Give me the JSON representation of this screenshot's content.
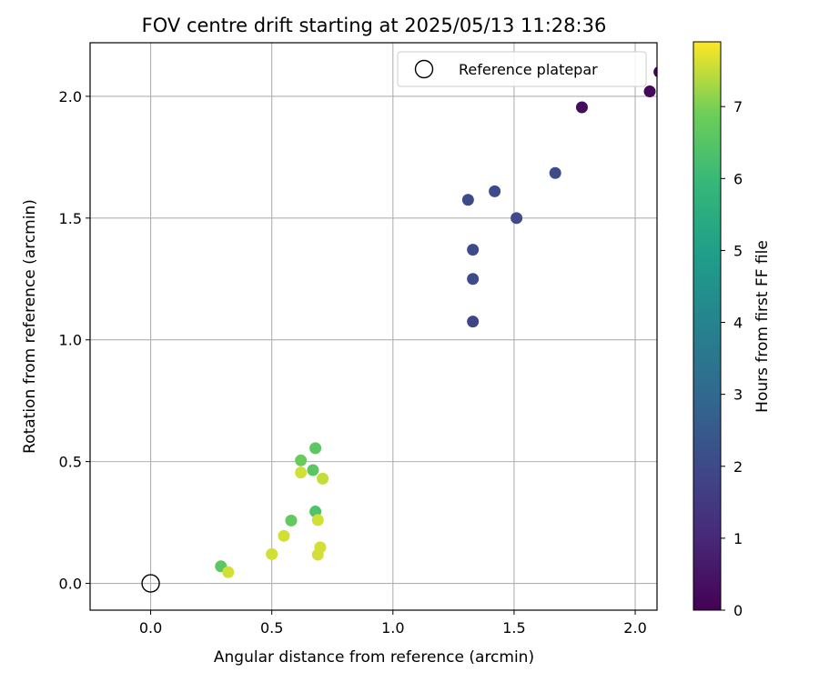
{
  "chart_data": {
    "type": "scatter",
    "title": "FOV centre drift starting at 2025/05/13 11:28:36",
    "xlabel": "Angular distance from reference (arcmin)",
    "ylabel": "Rotation from reference (arcmin)",
    "xlim": [
      -0.25,
      2.09
    ],
    "ylim": [
      -0.11,
      2.22
    ],
    "x_ticks": [
      0.0,
      0.5,
      1.0,
      1.5,
      2.0
    ],
    "x_tick_labels": [
      "0.0",
      "0.5",
      "1.0",
      "1.5",
      "2.0"
    ],
    "y_ticks": [
      0.0,
      0.5,
      1.0,
      1.5,
      2.0
    ],
    "y_tick_labels": [
      "0.0",
      "0.5",
      "1.0",
      "1.5",
      "2.0"
    ],
    "grid": true,
    "legend": {
      "position": "top-right",
      "entries": [
        "Reference platepar"
      ]
    },
    "reference_point": {
      "name": "Reference platepar",
      "x": 0.0,
      "y": 0.0
    },
    "colorbar": {
      "label": "Hours from first FF file",
      "range": [
        0,
        7.9
      ],
      "ticks": [
        0,
        1,
        2,
        3,
        4,
        5,
        6,
        7
      ],
      "tick_labels": [
        "0",
        "1",
        "2",
        "3",
        "4",
        "5",
        "6",
        "7"
      ],
      "colormap": "viridis"
    },
    "series": [
      {
        "points": [
          {
            "x": 2.1,
            "y": 2.1,
            "c": 0.1
          },
          {
            "x": 2.06,
            "y": 2.02,
            "c": 0.2
          },
          {
            "x": 1.78,
            "y": 1.955,
            "c": 0.3
          },
          {
            "x": 1.67,
            "y": 1.685,
            "c": 2.1
          },
          {
            "x": 1.42,
            "y": 1.61,
            "c": 2.0
          },
          {
            "x": 1.31,
            "y": 1.575,
            "c": 2.0
          },
          {
            "x": 1.51,
            "y": 1.5,
            "c": 2.0
          },
          {
            "x": 1.33,
            "y": 1.37,
            "c": 2.0
          },
          {
            "x": 1.33,
            "y": 1.25,
            "c": 2.0
          },
          {
            "x": 1.33,
            "y": 1.075,
            "c": 1.9
          },
          {
            "x": 0.68,
            "y": 0.555,
            "c": 6.6
          },
          {
            "x": 0.62,
            "y": 0.505,
            "c": 6.8
          },
          {
            "x": 0.67,
            "y": 0.465,
            "c": 6.6
          },
          {
            "x": 0.62,
            "y": 0.455,
            "c": 7.6
          },
          {
            "x": 0.71,
            "y": 0.43,
            "c": 7.5
          },
          {
            "x": 0.68,
            "y": 0.295,
            "c": 6.4
          },
          {
            "x": 0.58,
            "y": 0.258,
            "c": 6.7
          },
          {
            "x": 0.69,
            "y": 0.26,
            "c": 7.6
          },
          {
            "x": 0.55,
            "y": 0.195,
            "c": 7.6
          },
          {
            "x": 0.7,
            "y": 0.148,
            "c": 7.6
          },
          {
            "x": 0.5,
            "y": 0.12,
            "c": 7.6
          },
          {
            "x": 0.69,
            "y": 0.118,
            "c": 7.6
          },
          {
            "x": 0.29,
            "y": 0.07,
            "c": 6.6
          },
          {
            "x": 0.32,
            "y": 0.046,
            "c": 7.6
          }
        ]
      }
    ]
  }
}
